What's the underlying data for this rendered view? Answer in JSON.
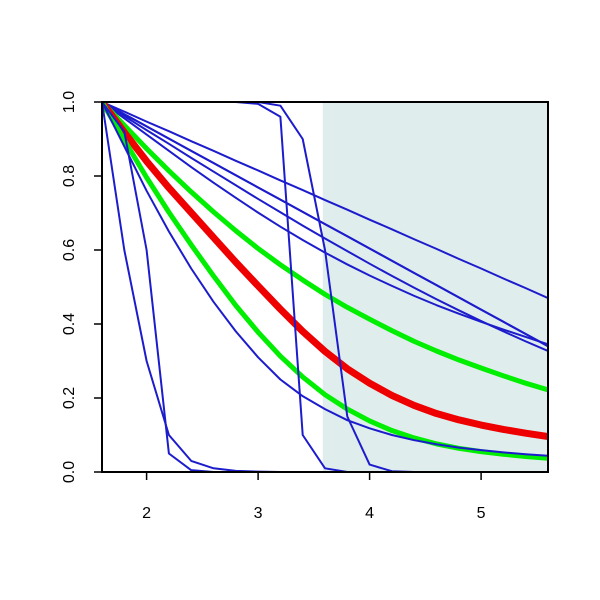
{
  "chart_data": {
    "type": "line",
    "title": "",
    "xlabel": "",
    "ylabel": "",
    "xlim": [
      1.6,
      5.6
    ],
    "ylim": [
      0.0,
      1.0
    ],
    "x_ticks": [
      2,
      3,
      4,
      5
    ],
    "y_ticks": [
      0.0,
      0.2,
      0.4,
      0.6,
      0.8,
      1.0
    ],
    "x_tick_labels": [
      "2",
      "3",
      "4",
      "5"
    ],
    "y_tick_labels": [
      "0.0",
      "0.2",
      "0.4",
      "0.6",
      "0.8",
      "1.0"
    ],
    "grid": false,
    "legend": "none",
    "shaded_region": {
      "x_from": 3.58,
      "x_to": 5.6,
      "color": "#e0eded"
    },
    "x": [
      1.6,
      1.8,
      2.0,
      2.2,
      2.4,
      2.6,
      2.8,
      3.0,
      3.2,
      3.4,
      3.6,
      3.8,
      4.0,
      4.2,
      4.4,
      4.6,
      4.8,
      5.0,
      5.2,
      5.4,
      5.6
    ],
    "series": [
      {
        "color": "#1c1ccc",
        "width": 2,
        "values": [
          1.0,
          0.974,
          0.947,
          0.921,
          0.894,
          0.868,
          0.841,
          0.815,
          0.788,
          0.762,
          0.735,
          0.709,
          0.682,
          0.656,
          0.629,
          0.603,
          0.576,
          0.55,
          0.523,
          0.497,
          0.47
        ]
      },
      {
        "color": "#1c1ccc",
        "width": 2,
        "values": [
          1.0,
          0.967,
          0.934,
          0.901,
          0.868,
          0.835,
          0.802,
          0.769,
          0.736,
          0.703,
          0.67,
          0.637,
          0.604,
          0.571,
          0.538,
          0.505,
          0.472,
          0.439,
          0.406,
          0.373,
          0.34
        ]
      },
      {
        "color": "#1c1ccc",
        "width": 2,
        "values": [
          1.0,
          0.967,
          0.934,
          0.901,
          0.868,
          0.835,
          0.802,
          0.769,
          0.736,
          0.703,
          0.67,
          0.637,
          0.604,
          0.571,
          0.538,
          0.505,
          0.472,
          0.439,
          0.406,
          0.373,
          0.34
        ]
      },
      {
        "color": "#1c1ccc",
        "width": 2,
        "values": [
          1.0,
          0.962,
          0.924,
          0.887,
          0.849,
          0.812,
          0.775,
          0.738,
          0.702,
          0.666,
          0.631,
          0.597,
          0.563,
          0.53,
          0.498,
          0.467,
          0.437,
          0.408,
          0.38,
          0.353,
          0.327
        ]
      },
      {
        "color": "#1c1ccc",
        "width": 2,
        "values": [
          1.0,
          0.956,
          0.912,
          0.868,
          0.824,
          0.782,
          0.741,
          0.701,
          0.663,
          0.627,
          0.593,
          0.561,
          0.531,
          0.503,
          0.476,
          0.451,
          0.428,
          0.406,
          0.385,
          0.365,
          0.345
        ]
      },
      {
        "color": "#00ee00",
        "width": 5,
        "values": [
          1.0,
          0.937,
          0.874,
          0.814,
          0.757,
          0.703,
          0.652,
          0.604,
          0.56,
          0.519,
          0.48,
          0.445,
          0.413,
          0.382,
          0.353,
          0.327,
          0.303,
          0.281,
          0.26,
          0.24,
          0.222
        ]
      },
      {
        "color": "#ee0000",
        "width": 7,
        "values": [
          1.0,
          0.918,
          0.84,
          0.768,
          0.701,
          0.634,
          0.567,
          0.503,
          0.44,
          0.38,
          0.326,
          0.279,
          0.24,
          0.207,
          0.18,
          0.158,
          0.141,
          0.127,
          0.115,
          0.105,
          0.096
        ]
      },
      {
        "color": "#00ee00",
        "width": 5,
        "values": [
          1.0,
          0.897,
          0.796,
          0.702,
          0.614,
          0.53,
          0.45,
          0.378,
          0.313,
          0.257,
          0.209,
          0.17,
          0.138,
          0.112,
          0.092,
          0.076,
          0.064,
          0.055,
          0.048,
          0.042,
          0.037
        ]
      },
      {
        "color": "#1c1ccc",
        "width": 2,
        "values": [
          1.0,
          0.88,
          0.76,
          0.65,
          0.55,
          0.46,
          0.38,
          0.31,
          0.25,
          0.205,
          0.17,
          0.14,
          0.118,
          0.1,
          0.086,
          0.075,
          0.066,
          0.059,
          0.053,
          0.048,
          0.044
        ]
      },
      {
        "color": "#1c1ccc",
        "width": 2,
        "values": [
          1.0,
          0.6,
          0.3,
          0.1,
          0.03,
          0.01,
          0.003,
          0.001,
          0.0,
          0.0,
          0.0,
          0.0,
          0.0,
          0.0,
          0.0,
          0.0,
          0.0,
          0.0,
          0.0,
          0.0,
          0.0
        ]
      },
      {
        "color": "#1c1ccc",
        "width": 2,
        "values": [
          1.0,
          0.92,
          0.6,
          0.05,
          0.005,
          0.0,
          0.0,
          0.0,
          0.0,
          0.0,
          0.0,
          0.0,
          0.0,
          0.0,
          0.0,
          0.0,
          0.0,
          0.0,
          0.0,
          0.0,
          0.0
        ]
      },
      {
        "color": "#1c1ccc",
        "width": 2,
        "values": [
          1.0,
          1.0,
          1.0,
          1.0,
          1.0,
          1.0,
          1.0,
          0.995,
          0.96,
          0.1,
          0.01,
          0.0,
          0.0,
          0.0,
          0.0,
          0.0,
          0.0,
          0.0,
          0.0,
          0.0,
          0.0
        ]
      },
      {
        "color": "#1c1ccc",
        "width": 2,
        "values": [
          1.0,
          1.0,
          1.0,
          1.0,
          1.0,
          1.0,
          1.0,
          1.0,
          0.99,
          0.9,
          0.6,
          0.15,
          0.02,
          0.002,
          0.0,
          0.0,
          0.0,
          0.0,
          0.0,
          0.0,
          0.0
        ]
      }
    ]
  }
}
